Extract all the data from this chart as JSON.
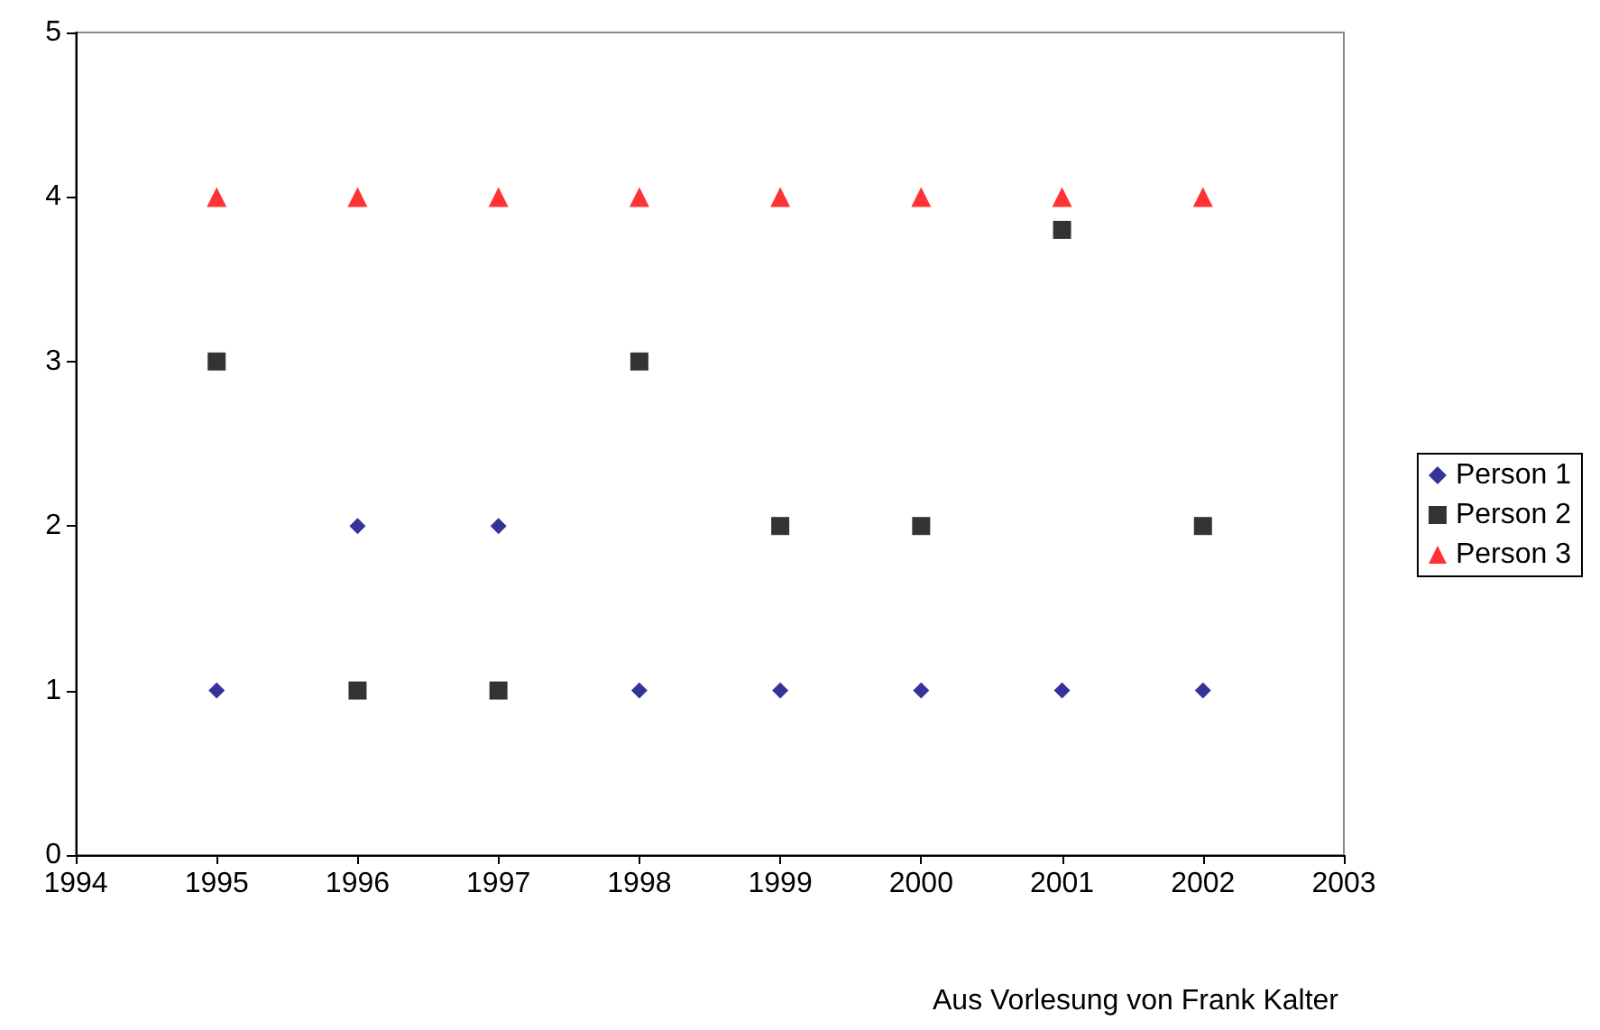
{
  "chart_data": {
    "type": "scatter",
    "x": [
      1995,
      1996,
      1997,
      1998,
      1999,
      2000,
      2001,
      2002
    ],
    "series": [
      {
        "name": "Person 1",
        "color": "#000080",
        "marker": "diamond",
        "values": [
          1,
          2,
          2,
          1,
          1,
          1,
          1,
          1
        ]
      },
      {
        "name": "Person 2",
        "color": "#000000",
        "marker": "square",
        "values": [
          3,
          1,
          1,
          3,
          2,
          2,
          3.8,
          2
        ]
      },
      {
        "name": "Person 3",
        "color": "#ff0000",
        "marker": "triangle",
        "values": [
          4,
          4,
          4,
          4,
          4,
          4,
          4,
          4
        ]
      }
    ],
    "xlim": [
      1994,
      2003
    ],
    "xticks": [
      1994,
      1995,
      1996,
      1997,
      1998,
      1999,
      2000,
      2001,
      2002,
      2003
    ],
    "ylim": [
      0,
      5
    ],
    "yticks": [
      0,
      1,
      2,
      3,
      4,
      5
    ],
    "grid": false,
    "legend": "right",
    "annotations": [
      "Aus Vorlesung von Frank Kalter"
    ]
  }
}
